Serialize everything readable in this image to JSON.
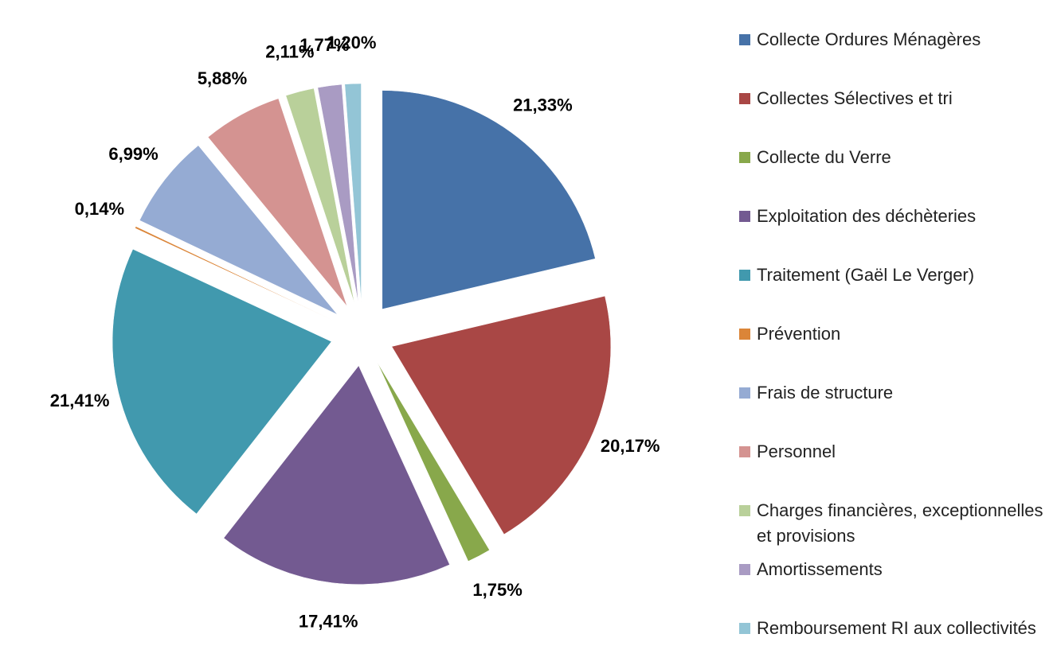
{
  "chart_data": {
    "type": "pie",
    "categories": [
      "Collecte Ordures Ménagères",
      "Collectes Sélectives et tri",
      "Collecte du Verre",
      "Exploitation des déchèteries",
      "Traitement (Gaël Le Verger)",
      "Prévention",
      "Frais de structure",
      "Personnel",
      "Charges financières, exceptionnelles et provisions",
      "Amortissements",
      "Remboursement RI aux collectivités"
    ],
    "values": [
      21.33,
      20.17,
      1.75,
      17.41,
      21.41,
      0.14,
      6.99,
      5.88,
      2.11,
      1.77,
      1.2
    ],
    "value_labels": [
      "21,33%",
      "20,17%",
      "1,75%",
      "17,41%",
      "21,41%",
      "0,14%",
      "6,99%",
      "5,88%",
      "2,11%",
      "1,77%",
      "1,20%"
    ],
    "colors": [
      "#4672a8",
      "#a94745",
      "#88a84b",
      "#735a91",
      "#4199ae",
      "#db8538",
      "#95abd3",
      "#d49391",
      "#b9d09a",
      "#a99bc3",
      "#93c5d6"
    ],
    "legend": "right"
  }
}
